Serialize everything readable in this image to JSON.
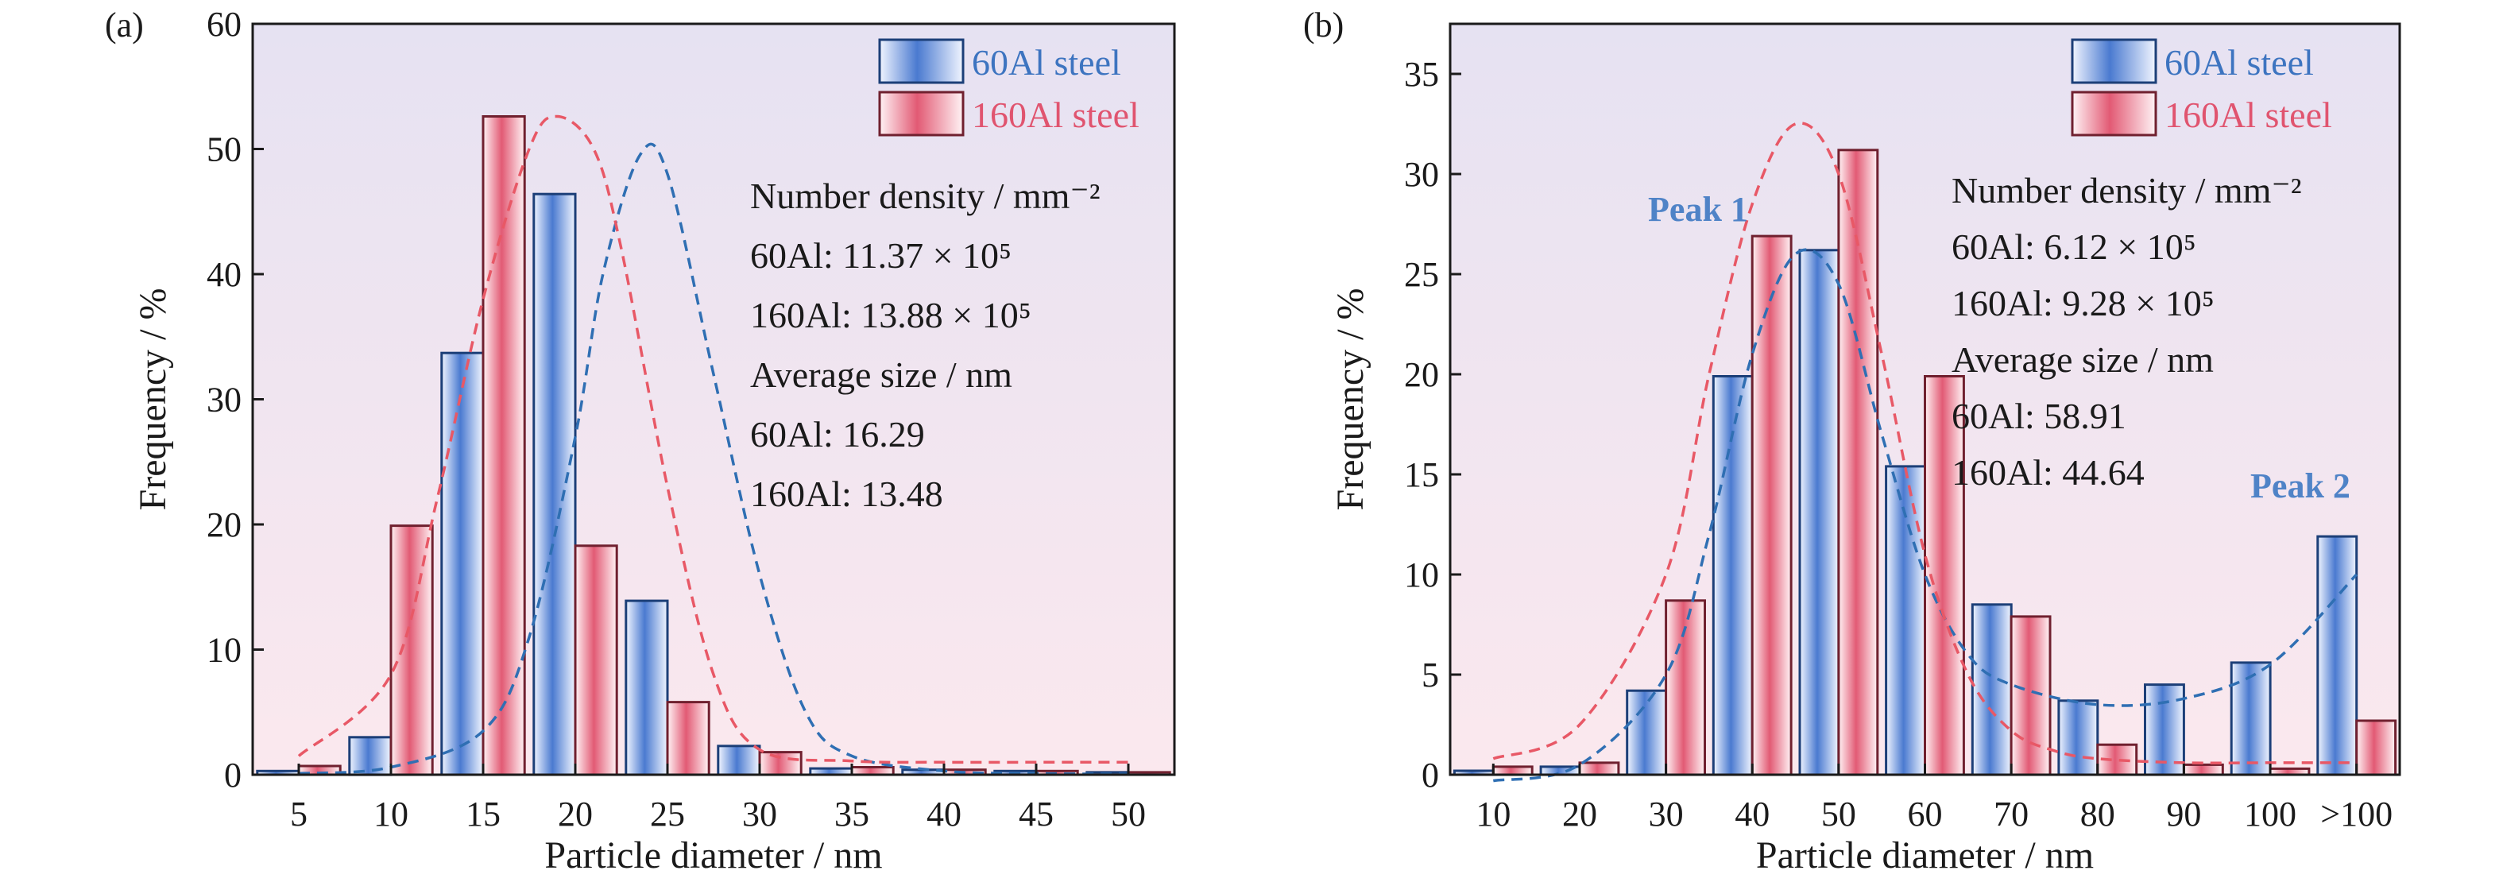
{
  "chart_data": [
    {
      "panel_label": "(a)",
      "type": "bar",
      "xlabel": "Particle diameter / nm",
      "ylabel": "Frequency / %",
      "ylim": [
        0,
        60
      ],
      "yticks": [
        0,
        10,
        20,
        30,
        40,
        50,
        60
      ],
      "categories": [
        "5",
        "10",
        "15",
        "20",
        "25",
        "30",
        "35",
        "40",
        "45",
        "50"
      ],
      "series": [
        {
          "name": "60Al steel",
          "values": [
            0.3,
            3.0,
            33.7,
            46.4,
            13.9,
            2.3,
            0.5,
            0.4,
            0.3,
            0.2
          ]
        },
        {
          "name": "160Al steel",
          "values": [
            0.7,
            19.9,
            52.6,
            18.3,
            5.8,
            1.8,
            0.6,
            0.4,
            0.3,
            0.2
          ]
        }
      ],
      "fit_curves": [
        {
          "series": "60Al steel",
          "x": [
            0,
            1,
            2,
            2.5,
            3,
            3.3,
            3.7,
            4,
            4.5,
            5,
            5.5,
            6,
            7,
            8,
            9
          ],
          "y": [
            0.1,
            0.6,
            3.5,
            11,
            27,
            40,
            49.5,
            48,
            32,
            16,
            5,
            1.5,
            0.3,
            0.1,
            0.05
          ]
        },
        {
          "series": "160Al steel",
          "x": [
            0,
            1,
            1.5,
            2,
            2.5,
            2.8,
            3.2,
            3.5,
            4,
            4.5,
            5,
            6,
            7,
            8,
            9
          ],
          "y": [
            1.5,
            8,
            22,
            38,
            50,
            52.6,
            50,
            42,
            23,
            8,
            2,
            1.1,
            1.0,
            1.0,
            1.0
          ]
        }
      ],
      "legend": {
        "position": "top-right",
        "entries": [
          "60Al steel",
          "160Al steel"
        ]
      },
      "annotations": [
        "Number density / mm⁻²",
        "60Al: 11.37 × 10⁵",
        "160Al: 13.88 × 10⁵",
        "Average size / nm",
        "60Al: 16.29",
        "160Al: 13.48"
      ],
      "peak_labels": []
    },
    {
      "panel_label": "(b)",
      "type": "bar",
      "xlabel": "Particle diameter / nm",
      "ylabel": "Frequency / %",
      "ylim": [
        0,
        37.5
      ],
      "yticks": [
        0,
        5,
        10,
        15,
        20,
        25,
        30,
        35
      ],
      "categories": [
        "10",
        "20",
        "30",
        "40",
        "50",
        "60",
        "70",
        "80",
        "90",
        "100",
        ">100"
      ],
      "series": [
        {
          "name": "60Al steel",
          "values": [
            0.2,
            0.4,
            4.2,
            19.9,
            26.2,
            15.4,
            8.5,
            3.7,
            4.5,
            5.6,
            11.9
          ]
        },
        {
          "name": "160Al steel",
          "values": [
            0.4,
            0.6,
            8.7,
            26.9,
            31.2,
            19.9,
            7.9,
            1.5,
            0.5,
            0.3,
            2.7
          ]
        }
      ],
      "fit_curves": [
        {
          "series": "60Al steel",
          "x": [
            0,
            1,
            2,
            2.5,
            3,
            3.5,
            4,
            4.5,
            5,
            5.5,
            6,
            7,
            8,
            9,
            10
          ],
          "y": [
            -0.3,
            0.5,
            5,
            12,
            21,
            26,
            24.5,
            17,
            10,
            6,
            4.5,
            3.5,
            3.8,
            5.5,
            10
          ]
        },
        {
          "series": "160Al steel",
          "x": [
            0,
            1,
            2,
            2.5,
            3,
            3.5,
            4,
            4.5,
            5,
            5.5,
            6,
            6.5,
            7,
            8,
            9,
            10
          ],
          "y": [
            0.8,
            2.5,
            10,
            20,
            28.5,
            32.5,
            30,
            21,
            11,
            5,
            2.2,
            1.2,
            0.8,
            0.6,
            0.6,
            0.6
          ]
        }
      ],
      "legend": {
        "position": "top-right",
        "entries": [
          "60Al steel",
          "160Al steel"
        ]
      },
      "annotations": [
        "Number density / mm⁻²",
        "60Al: 6.12 × 10⁵",
        "160Al: 9.28 × 10⁵",
        "Average size / nm",
        "60Al: 58.91",
        "160Al: 44.64"
      ],
      "peak_labels": [
        "Peak 1",
        "Peak 2"
      ]
    }
  ],
  "colors": {
    "series_0_edge": "#1c3f78",
    "series_0_fill_light": "#f1f5ff",
    "series_0_fill_dark": "#4a7ad0",
    "series_1_edge": "#70202f",
    "series_1_fill_light": "#fff3f5",
    "series_1_fill_dark": "#e25a74",
    "fit_0": "#2f6fb3",
    "fit_1": "#e85866",
    "bg_top": "#e6e2f2",
    "bg_bottom": "#fbe8ee"
  }
}
